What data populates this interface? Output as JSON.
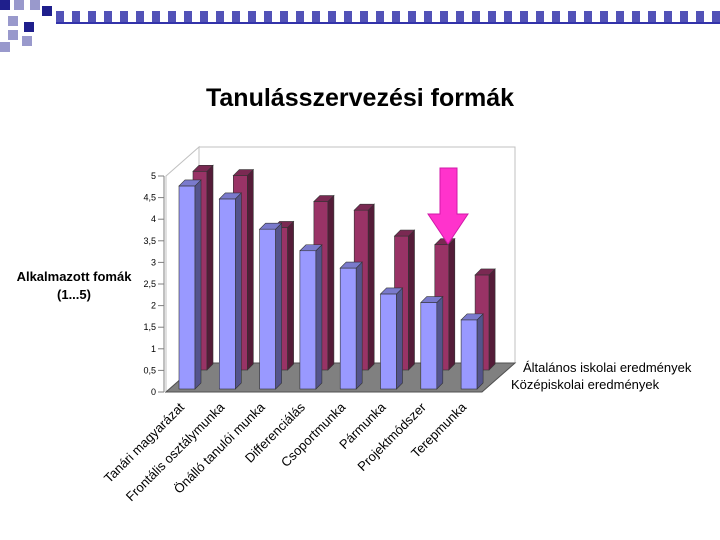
{
  "slide": {
    "title": "Tanulásszervezési formák",
    "ylabel_line1": "Alkalmazott fomák",
    "ylabel_line2": "(1...5)"
  },
  "colors": {
    "front_series": "#9999ff",
    "back_series": "#993366",
    "arrow": "#ff33cc",
    "floor": "#808080"
  },
  "chart_data": {
    "type": "bar",
    "title": "Tanulásszervezési formák",
    "xlabel": "",
    "ylabel": "Alkalmazott fomák (1...5)",
    "ylim": [
      0,
      5
    ],
    "yticks": [
      "0",
      "0,5",
      "1",
      "1,5",
      "2",
      "2,5",
      "3",
      "3,5",
      "4",
      "4,5",
      "5"
    ],
    "categories": [
      "Tanári magyarázat",
      "Frontális osztálymunka",
      "Önálló tanulói munka",
      "Differenciálás",
      "Csoportmunka",
      "Pármunka",
      "Projektmódszer",
      "Terepmunka"
    ],
    "series": [
      {
        "name": "Általános iskolai eredmények",
        "values": [
          4.6,
          4.5,
          3.3,
          3.9,
          3.7,
          3.1,
          2.9,
          2.2
        ]
      },
      {
        "name": "Középiskolai eredmények",
        "values": [
          4.7,
          4.4,
          3.7,
          3.2,
          2.8,
          2.2,
          2.0,
          1.6
        ]
      }
    ],
    "legend": "bottom-right",
    "grid": false
  }
}
